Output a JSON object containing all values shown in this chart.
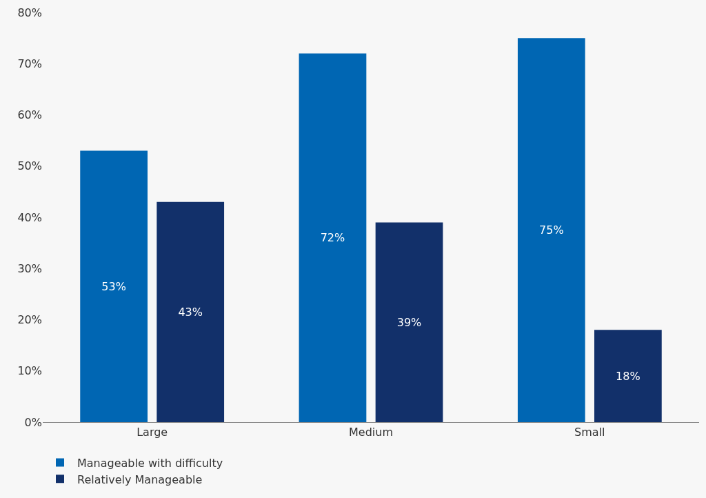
{
  "chart_data": {
    "type": "bar",
    "categories": [
      "Large",
      "Medium",
      "Small"
    ],
    "series": [
      {
        "name": "Manageable with difficulty",
        "color": "#0066b3",
        "values": [
          53,
          72,
          75
        ],
        "value_labels": [
          "53%",
          "72%",
          "75%"
        ]
      },
      {
        "name": "Relatively Manageable",
        "color": "#12306a",
        "values": [
          43,
          39,
          18
        ],
        "value_labels": [
          "43%",
          "39%",
          "18%"
        ]
      }
    ],
    "ylim": [
      0,
      80
    ],
    "yticks": [
      {
        "value": 0,
        "label": "0%"
      },
      {
        "value": 10,
        "label": "10%"
      },
      {
        "value": 20,
        "label": "20%"
      },
      {
        "value": 30,
        "label": "30%"
      },
      {
        "value": 40,
        "label": "40%"
      },
      {
        "value": 50,
        "label": "50%"
      },
      {
        "value": 60,
        "label": "60%"
      },
      {
        "value": 70,
        "label": "70%"
      },
      {
        "value": 80,
        "label": "80%"
      }
    ],
    "grid": false,
    "legend": "bottom"
  }
}
